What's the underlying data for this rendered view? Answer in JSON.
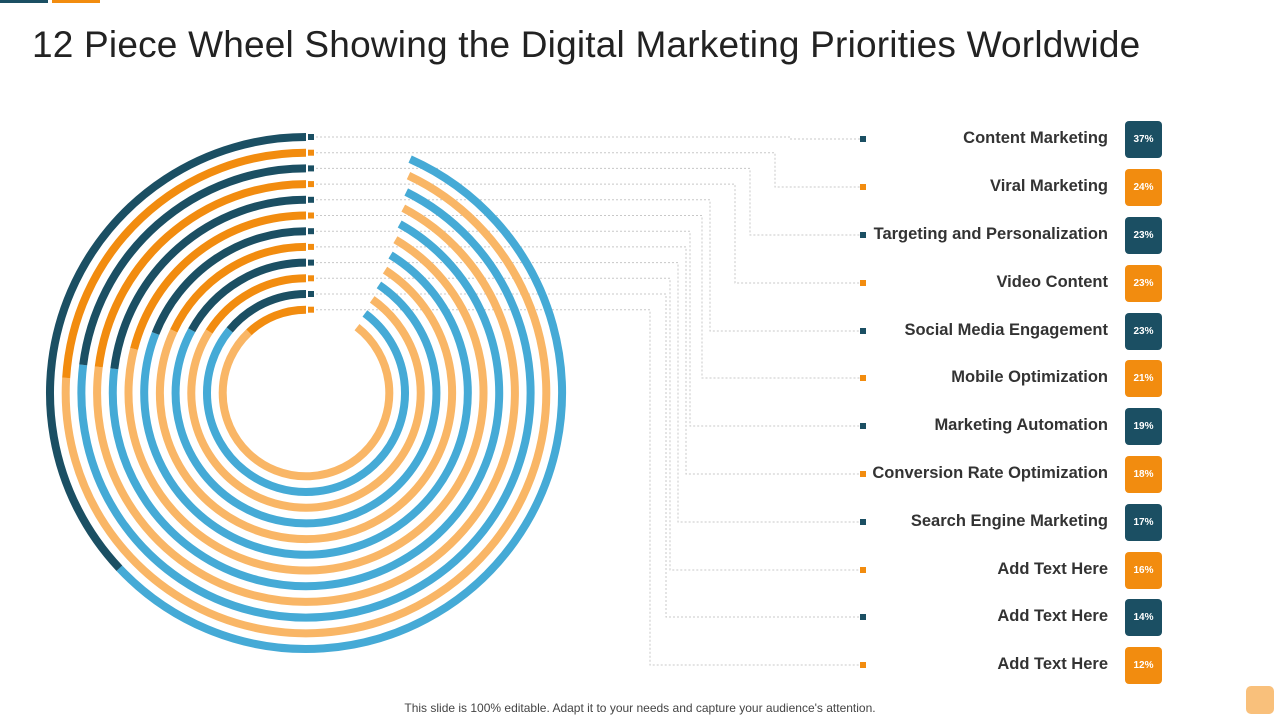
{
  "slide": {
    "title": "12 Piece Wheel Showing the Digital Marketing Priorities Worldwide",
    "footer": "This slide is 100% editable. Adapt it to your needs and capture your audience's attention."
  },
  "colors": {
    "dark": "#1b4f63",
    "orange": "#f28c0f",
    "light_blue": "#45aad6",
    "light_orange": "#f9b666",
    "leader_line": "#c8c8c8"
  },
  "chart_data": {
    "type": "radial-bar",
    "title": "12 Piece Wheel Showing the Digital Marketing Priorities Worldwide",
    "unit": "%",
    "categories": [
      "Content Marketing",
      "Viral Marketing",
      "Targeting and Personalization",
      "Video Content",
      "Social Media Engagement",
      "Mobile Optimization",
      "Marketing Automation",
      "Conversion Rate Optimization",
      "Search Engine Marketing",
      "Add Text Here",
      "Add Text Here",
      "Add Text Here"
    ],
    "values": [
      37,
      24,
      23,
      23,
      23,
      21,
      19,
      18,
      17,
      16,
      14,
      12
    ],
    "labels": [
      "37%",
      "24%",
      "23%",
      "23%",
      "23%",
      "21%",
      "19%",
      "18%",
      "17%",
      "16%",
      "14%",
      "12%"
    ],
    "series_colors": [
      "dark",
      "orange",
      "dark",
      "orange",
      "dark",
      "orange",
      "dark",
      "orange",
      "dark",
      "orange",
      "dark",
      "orange"
    ],
    "continuation_colors": [
      "light_blue",
      "light_orange",
      "light_blue",
      "light_orange",
      "light_blue",
      "light_orange",
      "light_blue",
      "light_orange",
      "light_blue",
      "light_orange",
      "light_blue",
      "light_orange"
    ]
  }
}
